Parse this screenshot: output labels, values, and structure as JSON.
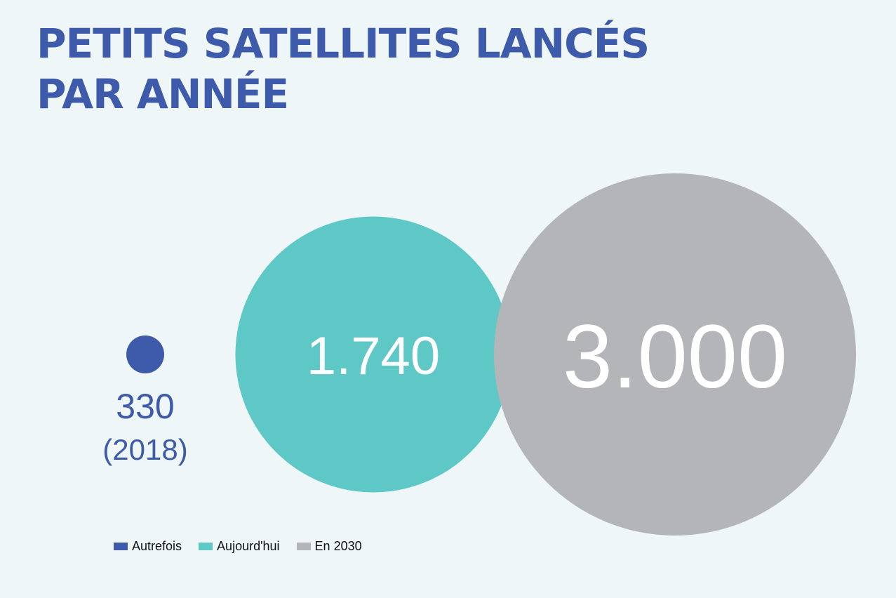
{
  "title_lines": [
    "PETITS SATELLITES LANCÉS",
    "PAR ANNÉE"
  ],
  "chart_data": {
    "type": "bubble",
    "title": "PETITS SATELLITES LANCÉS PAR ANNÉE",
    "series": [
      {
        "name": "Autrefois",
        "value": 330,
        "label": "330",
        "sublabel": "(2018)",
        "color": "#3e5aab"
      },
      {
        "name": "Aujourd'hui",
        "value": 1740,
        "label": "1.740",
        "color": "#5ec8c6"
      },
      {
        "name": "En 2030",
        "value": 3000,
        "label": "3.000",
        "color": "#b4b5b9"
      }
    ],
    "legend_position": "bottom-left"
  }
}
